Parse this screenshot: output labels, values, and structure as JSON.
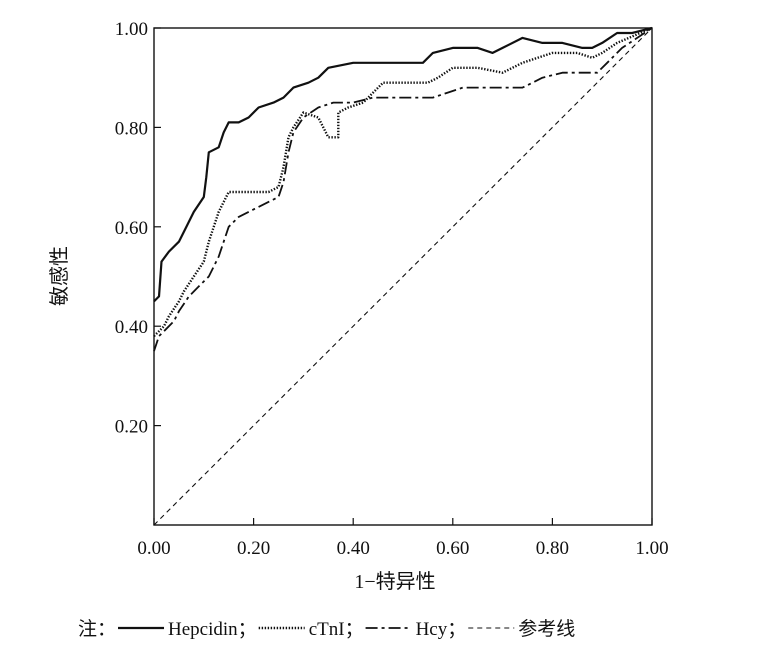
{
  "chart_data": {
    "type": "line",
    "title": "",
    "xlabel": "1−特异性",
    "ylabel": "敏感性",
    "xlim": [
      0,
      1
    ],
    "ylim": [
      0,
      1
    ],
    "grid": false,
    "legend_position": "bottom",
    "x_ticks": [
      {
        "value": 0.0,
        "label": "0.00"
      },
      {
        "value": 0.2,
        "label": "0.20"
      },
      {
        "value": 0.4,
        "label": "0.40"
      },
      {
        "value": 0.6,
        "label": "0.60"
      },
      {
        "value": 0.8,
        "label": "0.80"
      },
      {
        "value": 1.0,
        "label": "1.00"
      }
    ],
    "y_ticks": [
      {
        "value": 0.2,
        "label": "0.20"
      },
      {
        "value": 0.4,
        "label": "0.40"
      },
      {
        "value": 0.6,
        "label": "0.60"
      },
      {
        "value": 0.8,
        "label": "0.80"
      },
      {
        "value": 1.0,
        "label": "1.00"
      }
    ],
    "legend": {
      "prefix": "注：",
      "items": [
        {
          "name": "Hepcidin",
          "sep": "；",
          "style": "solid"
        },
        {
          "name": "cTnI",
          "sep": "；",
          "style": "dotted"
        },
        {
          "name": "Hcy",
          "sep": "；",
          "style": "dashdot"
        },
        {
          "name": "参考线",
          "sep": "",
          "style": "dashed"
        }
      ]
    },
    "series": [
      {
        "name": "Hepcidin",
        "style": "solid",
        "color": "#111111",
        "points": [
          [
            0,
            0.45
          ],
          [
            0.01,
            0.46
          ],
          [
            0.015,
            0.53
          ],
          [
            0.03,
            0.55
          ],
          [
            0.05,
            0.57
          ],
          [
            0.065,
            0.6
          ],
          [
            0.08,
            0.63
          ],
          [
            0.1,
            0.66
          ],
          [
            0.105,
            0.7
          ],
          [
            0.11,
            0.75
          ],
          [
            0.13,
            0.76
          ],
          [
            0.14,
            0.79
          ],
          [
            0.15,
            0.81
          ],
          [
            0.17,
            0.81
          ],
          [
            0.19,
            0.82
          ],
          [
            0.21,
            0.84
          ],
          [
            0.24,
            0.85
          ],
          [
            0.26,
            0.86
          ],
          [
            0.28,
            0.88
          ],
          [
            0.31,
            0.89
          ],
          [
            0.33,
            0.9
          ],
          [
            0.35,
            0.92
          ],
          [
            0.4,
            0.93
          ],
          [
            0.45,
            0.93
          ],
          [
            0.5,
            0.93
          ],
          [
            0.54,
            0.93
          ],
          [
            0.56,
            0.95
          ],
          [
            0.6,
            0.96
          ],
          [
            0.65,
            0.96
          ],
          [
            0.68,
            0.95
          ],
          [
            0.7,
            0.96
          ],
          [
            0.74,
            0.98
          ],
          [
            0.78,
            0.97
          ],
          [
            0.82,
            0.97
          ],
          [
            0.86,
            0.96
          ],
          [
            0.88,
            0.96
          ],
          [
            0.9,
            0.97
          ],
          [
            0.93,
            0.99
          ],
          [
            0.96,
            0.99
          ],
          [
            1.0,
            1.0
          ]
        ]
      },
      {
        "name": "cTnI",
        "style": "dotted",
        "color": "#111111",
        "points": [
          [
            0,
            0.38
          ],
          [
            0.01,
            0.39
          ],
          [
            0.02,
            0.4
          ],
          [
            0.03,
            0.42
          ],
          [
            0.05,
            0.45
          ],
          [
            0.06,
            0.47
          ],
          [
            0.08,
            0.5
          ],
          [
            0.1,
            0.53
          ],
          [
            0.11,
            0.57
          ],
          [
            0.13,
            0.63
          ],
          [
            0.15,
            0.67
          ],
          [
            0.18,
            0.67
          ],
          [
            0.2,
            0.67
          ],
          [
            0.23,
            0.67
          ],
          [
            0.25,
            0.68
          ],
          [
            0.26,
            0.72
          ],
          [
            0.27,
            0.78
          ],
          [
            0.28,
            0.8
          ],
          [
            0.3,
            0.83
          ],
          [
            0.33,
            0.82
          ],
          [
            0.34,
            0.8
          ],
          [
            0.35,
            0.78
          ],
          [
            0.37,
            0.78
          ],
          [
            0.37,
            0.83
          ],
          [
            0.39,
            0.84
          ],
          [
            0.42,
            0.85
          ],
          [
            0.44,
            0.87
          ],
          [
            0.46,
            0.89
          ],
          [
            0.5,
            0.89
          ],
          [
            0.55,
            0.89
          ],
          [
            0.57,
            0.9
          ],
          [
            0.6,
            0.92
          ],
          [
            0.65,
            0.92
          ],
          [
            0.7,
            0.91
          ],
          [
            0.74,
            0.93
          ],
          [
            0.8,
            0.95
          ],
          [
            0.85,
            0.95
          ],
          [
            0.88,
            0.94
          ],
          [
            0.9,
            0.95
          ],
          [
            0.93,
            0.97
          ],
          [
            1.0,
            1.0
          ]
        ]
      },
      {
        "name": "Hcy",
        "style": "dashdot",
        "color": "#111111",
        "points": [
          [
            0,
            0.35
          ],
          [
            0.01,
            0.38
          ],
          [
            0.02,
            0.39
          ],
          [
            0.04,
            0.41
          ],
          [
            0.05,
            0.43
          ],
          [
            0.07,
            0.46
          ],
          [
            0.09,
            0.48
          ],
          [
            0.11,
            0.5
          ],
          [
            0.13,
            0.54
          ],
          [
            0.15,
            0.6
          ],
          [
            0.17,
            0.62
          ],
          [
            0.19,
            0.63
          ],
          [
            0.21,
            0.64
          ],
          [
            0.23,
            0.65
          ],
          [
            0.25,
            0.66
          ],
          [
            0.26,
            0.69
          ],
          [
            0.27,
            0.75
          ],
          [
            0.28,
            0.79
          ],
          [
            0.3,
            0.82
          ],
          [
            0.33,
            0.84
          ],
          [
            0.36,
            0.85
          ],
          [
            0.4,
            0.85
          ],
          [
            0.44,
            0.86
          ],
          [
            0.48,
            0.86
          ],
          [
            0.52,
            0.86
          ],
          [
            0.56,
            0.86
          ],
          [
            0.59,
            0.87
          ],
          [
            0.62,
            0.88
          ],
          [
            0.66,
            0.88
          ],
          [
            0.7,
            0.88
          ],
          [
            0.74,
            0.88
          ],
          [
            0.76,
            0.89
          ],
          [
            0.78,
            0.9
          ],
          [
            0.82,
            0.91
          ],
          [
            0.86,
            0.91
          ],
          [
            0.89,
            0.91
          ],
          [
            0.91,
            0.93
          ],
          [
            0.94,
            0.96
          ],
          [
            1.0,
            1.0
          ]
        ]
      },
      {
        "name": "参考线",
        "style": "dashed",
        "color": "#111111",
        "points": [
          [
            0,
            0
          ],
          [
            1,
            1
          ]
        ]
      }
    ]
  }
}
